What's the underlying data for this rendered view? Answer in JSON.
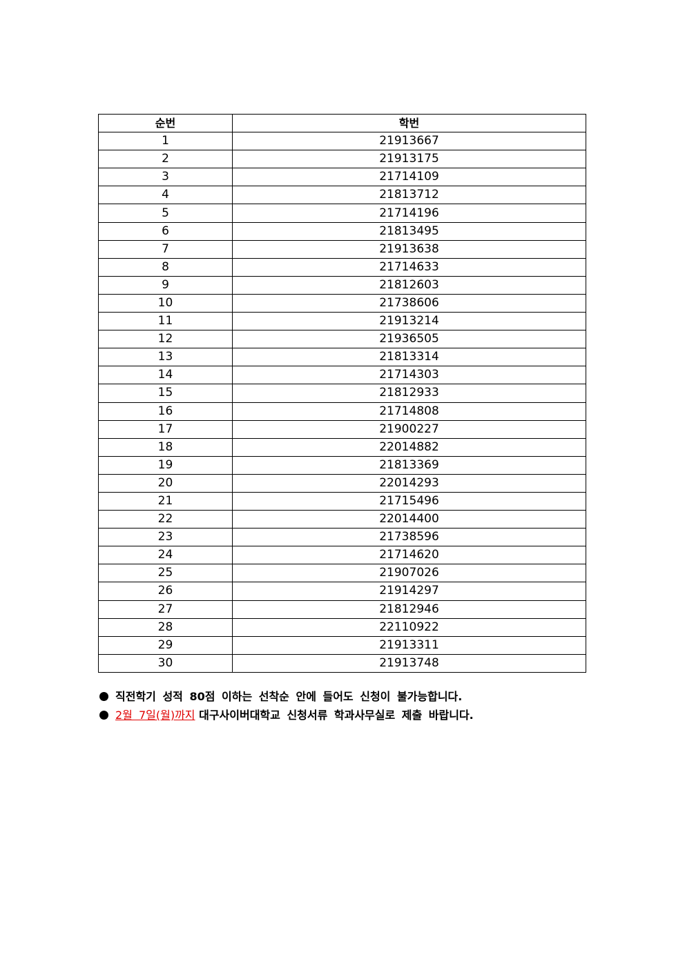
{
  "table": {
    "headers": [
      "순번",
      "학번"
    ],
    "rows": [
      [
        "1",
        "21913667"
      ],
      [
        "2",
        "21913175"
      ],
      [
        "3",
        "21714109"
      ],
      [
        "4",
        "21813712"
      ],
      [
        "5",
        "21714196"
      ],
      [
        "6",
        "21813495"
      ],
      [
        "7",
        "21913638"
      ],
      [
        "8",
        "21714633"
      ],
      [
        "9",
        "21812603"
      ],
      [
        "10",
        "21738606"
      ],
      [
        "11",
        "21913214"
      ],
      [
        "12",
        "21936505"
      ],
      [
        "13",
        "21813314"
      ],
      [
        "14",
        "21714303"
      ],
      [
        "15",
        "21812933"
      ],
      [
        "16",
        "21714808"
      ],
      [
        "17",
        "21900227"
      ],
      [
        "18",
        "22014882"
      ],
      [
        "19",
        "21813369"
      ],
      [
        "20",
        "22014293"
      ],
      [
        "21",
        "21715496"
      ],
      [
        "22",
        "22014400"
      ],
      [
        "23",
        "21738596"
      ],
      [
        "24",
        "21714620"
      ],
      [
        "25",
        "21907026"
      ],
      [
        "26",
        "21914297"
      ],
      [
        "27",
        "21812946"
      ],
      [
        "28",
        "22110922"
      ],
      [
        "29",
        "21913311"
      ],
      [
        "30",
        "21913748"
      ]
    ]
  },
  "notes": {
    "note1": "직전학기 성적 80점 이하는 선착순 안에 들어도 신청이 불가능합니다.",
    "note2_deadline": "2월 7일(월)까지",
    "note2_rest": "대구사이버대학교 신청서류 학과사무실로 제출 바랍니다.",
    "deadline_color": "#e00000"
  }
}
